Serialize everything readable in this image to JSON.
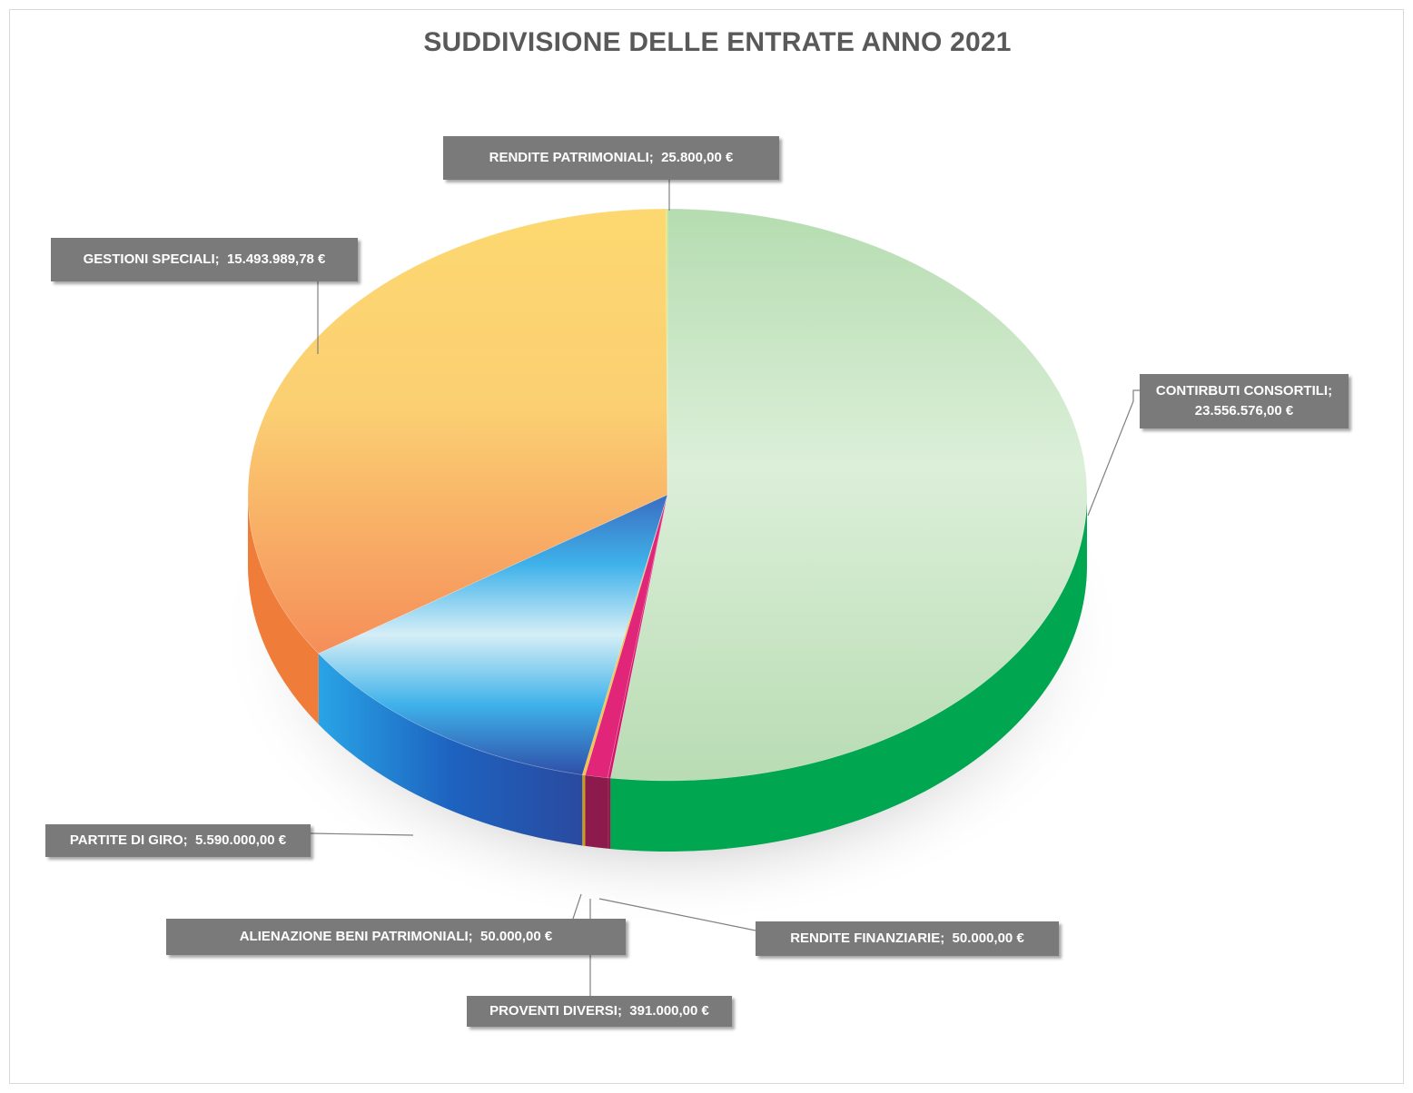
{
  "chart_data": {
    "type": "pie",
    "style": "3d",
    "title": "SUDDIVISIONE DELLE ENTRATE ANNO 2021",
    "currency": "€",
    "slices": [
      {
        "key": "contributi",
        "label": "CONTIRBUTI CONSORTILI",
        "value": 23556576.0,
        "display": "23.556.576,00 €",
        "color_top": "#c9e6c6",
        "color_side": "#00a650"
      },
      {
        "key": "rendite_finanziarie",
        "label": "RENDITE FINANZIARIE",
        "value": 50000.0,
        "display": "50.000,00 €",
        "color_top": "#d1156b",
        "color_side": "#8b1e4a"
      },
      {
        "key": "proventi",
        "label": "PROVENTI DIVERSI",
        "value": 391000.0,
        "display": "391.000,00 €",
        "color_top": "#e1267a",
        "color_side": "#8c1a4c"
      },
      {
        "key": "alienazione",
        "label": "ALIENAZIONE BENI PATRIMONIALI",
        "value": 50000.0,
        "display": "50.000,00 €",
        "color_top": "#f5c242",
        "color_side": "#c79a20"
      },
      {
        "key": "partite",
        "label": "PARTITE DI GIRO",
        "value": 5590000.0,
        "display": "5.590.000,00 €",
        "color_top": "#4a90d9",
        "color_side": "#1d5fb8"
      },
      {
        "key": "gestioni",
        "label": "GESTIONI SPECIALI",
        "value": 15493989.78,
        "display": "15.493.989,78 €",
        "color_top": "#fbc36e",
        "color_side": "#f07c3a"
      },
      {
        "key": "rendite_patrimoniali",
        "label": "RENDITE PATRIMONIALI",
        "value": 25800.0,
        "display": "25.800,00 €",
        "color_top": "#d9e86a",
        "color_side": "#9bbf2e"
      }
    ],
    "legend": "none",
    "data_labels": "label; value"
  }
}
